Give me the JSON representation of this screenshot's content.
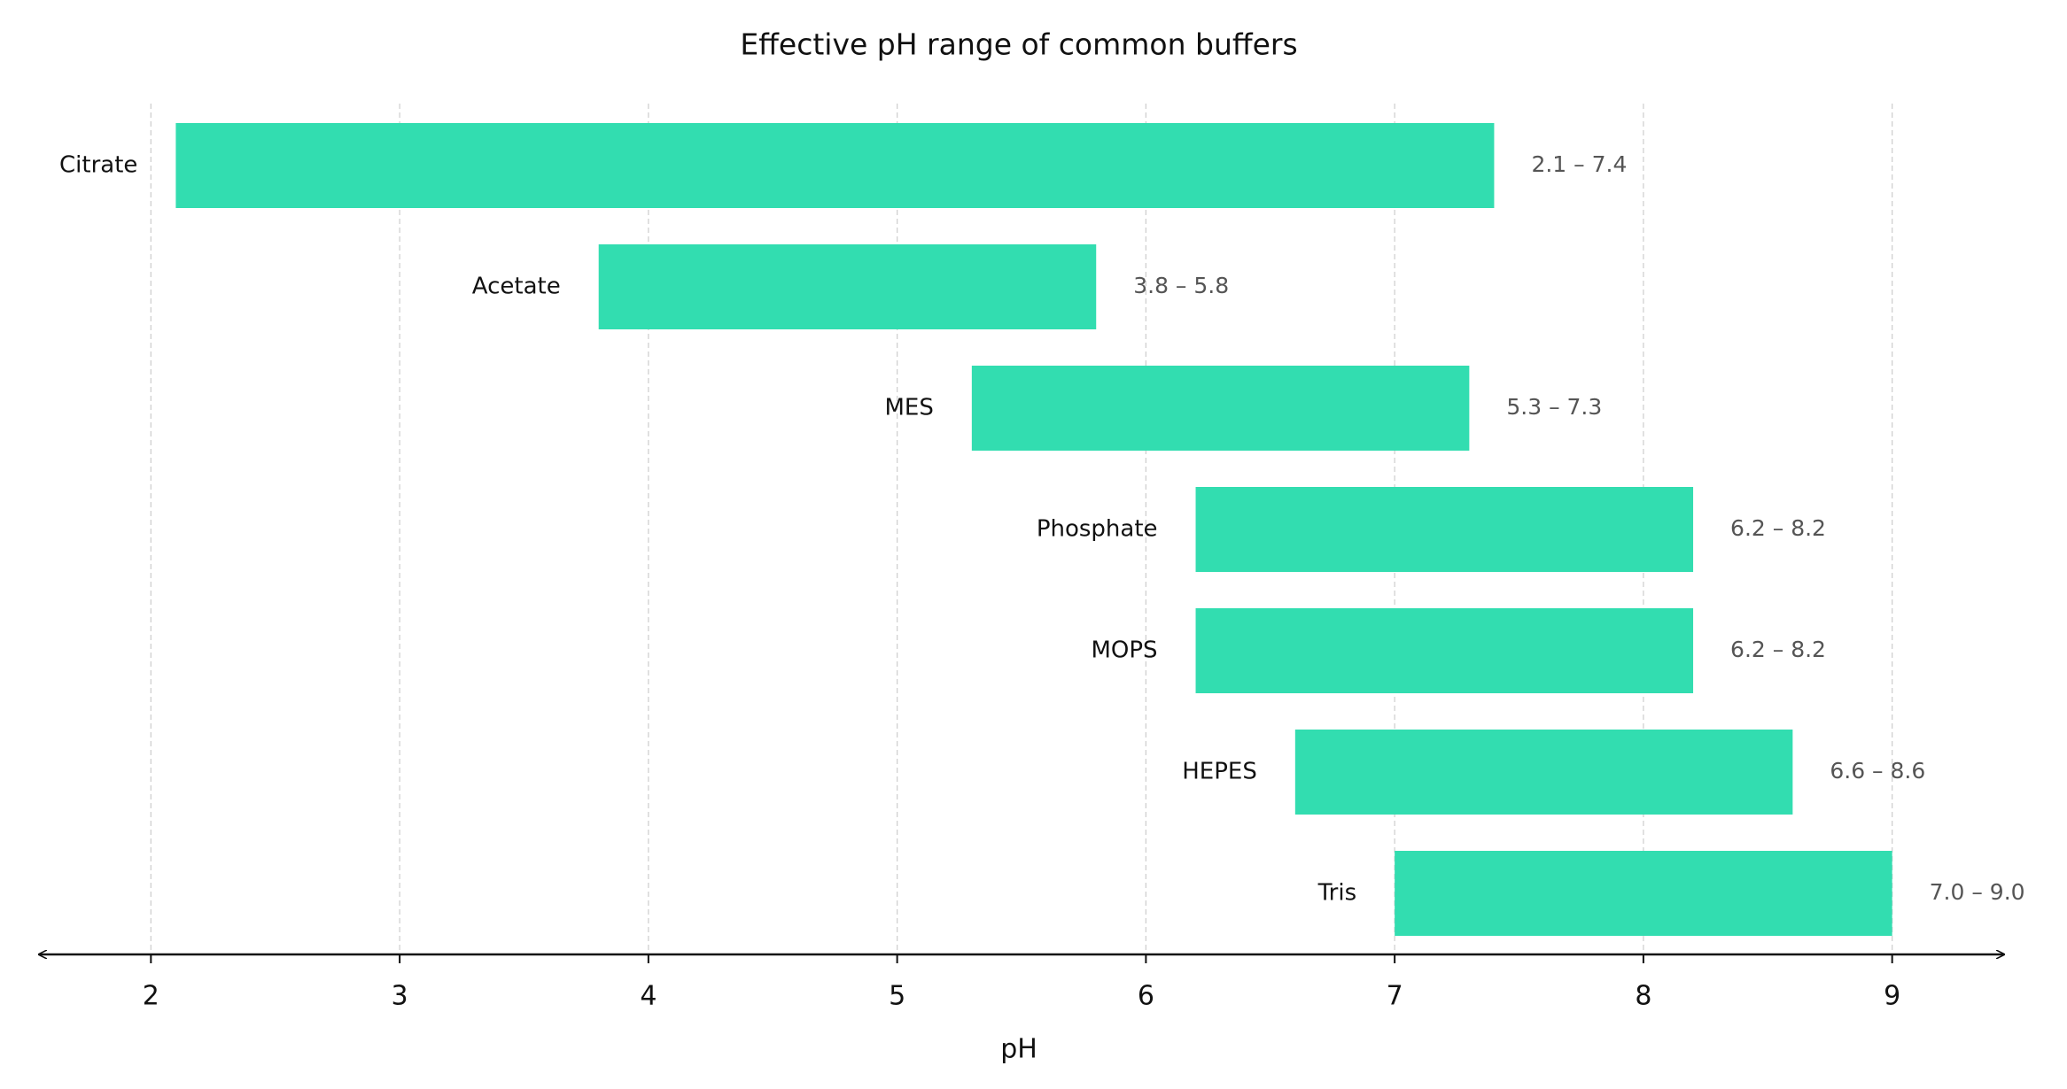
{
  "chart_data": {
    "type": "range_bar",
    "title": "Effective pH range of common buffers",
    "x_label": "pH",
    "categories": [
      "Citrate",
      "Acetate",
      "MES",
      "Phosphate",
      "MOPS",
      "HEPES",
      "Tris"
    ],
    "low": [
      2.1,
      3.8,
      5.3,
      6.2,
      6.2,
      6.6,
      7.0
    ],
    "high": [
      7.4,
      5.8,
      7.3,
      8.2,
      8.2,
      8.6,
      9.0
    ],
    "value_labels": [
      "2.1 – 7.4",
      "3.8 – 5.8",
      "5.3 – 7.3",
      "6.2 – 8.2",
      "6.2 – 8.2",
      "6.6 – 8.6",
      "7.0 – 9.0"
    ],
    "color": "#32ddb0",
    "xlim": [
      1.55,
      9.45
    ],
    "xticks": [
      2,
      3,
      4,
      5,
      6,
      7,
      8,
      9
    ],
    "grid": true
  }
}
